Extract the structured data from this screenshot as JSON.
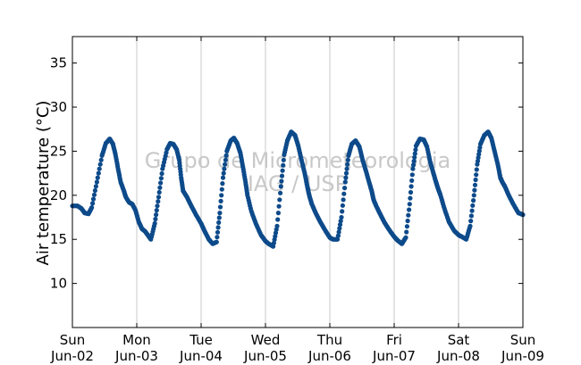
{
  "chart_data": {
    "type": "scatter",
    "title": "",
    "ylabel": "Air temperature (°C)",
    "xlabel": "",
    "ylim": [
      5,
      38
    ],
    "xlim_days": [
      0,
      7
    ],
    "yticks": [
      10,
      15,
      20,
      25,
      30,
      35
    ],
    "xticks": [
      {
        "day": 0,
        "weekday": "Sun",
        "date": "Jun-02"
      },
      {
        "day": 1,
        "weekday": "Mon",
        "date": "Jun-03"
      },
      {
        "day": 2,
        "weekday": "Tue",
        "date": "Jun-04"
      },
      {
        "day": 3,
        "weekday": "Wed",
        "date": "Jun-05"
      },
      {
        "day": 4,
        "weekday": "Thu",
        "date": "Jun-06"
      },
      {
        "day": 5,
        "weekday": "Fri",
        "date": "Jun-07"
      },
      {
        "day": 6,
        "weekday": "Sat",
        "date": "Jun-08"
      },
      {
        "day": 7,
        "weekday": "Sun",
        "date": "Jun-09"
      }
    ],
    "grid": "vertical",
    "marker_color": "#0d4a8a",
    "watermark": [
      "Grupo de Micrometeorologia",
      "IAG / USP"
    ],
    "series": [
      {
        "x": [
          0.0,
          0.08,
          0.14,
          0.19,
          0.25,
          0.3,
          0.38,
          0.46,
          0.52,
          0.58,
          0.63,
          0.67,
          0.71,
          0.75,
          0.8,
          0.83,
          0.88,
          0.93,
          0.98,
          1.03,
          1.08,
          1.13,
          1.18,
          1.22,
          1.28,
          1.34,
          1.4,
          1.47,
          1.52,
          1.57,
          1.62,
          1.66,
          1.69,
          1.72,
          1.78,
          1.84,
          1.92,
          2.0,
          2.05,
          2.12,
          2.18,
          2.24,
          2.29,
          2.34,
          2.4,
          2.46,
          2.51,
          2.56,
          2.61,
          2.65,
          2.69,
          2.72,
          2.78,
          2.85,
          2.93,
          3.0,
          3.05,
          3.12,
          3.18,
          3.24,
          3.29,
          3.34,
          3.4,
          3.46,
          3.51,
          3.56,
          3.61,
          3.65,
          3.68,
          3.72,
          3.78,
          3.85,
          3.93,
          4.0,
          4.05,
          4.12,
          4.18,
          4.24,
          4.29,
          4.34,
          4.4,
          4.46,
          4.51,
          4.56,
          4.61,
          4.65,
          4.68,
          4.72,
          4.78,
          4.85,
          4.93,
          5.0,
          5.05,
          5.12,
          5.18,
          5.24,
          5.29,
          5.34,
          5.4,
          5.46,
          5.51,
          5.56,
          5.61,
          5.65,
          5.68,
          5.72,
          5.78,
          5.85,
          5.93,
          6.0,
          6.05,
          6.12,
          6.18,
          6.24,
          6.29,
          6.34,
          6.4,
          6.46,
          6.51,
          6.56,
          6.61,
          6.65,
          6.68,
          6.72,
          6.78,
          6.85,
          6.93,
          7.0
        ],
        "y": [
          18.8,
          18.8,
          18.5,
          18.0,
          17.9,
          18.6,
          21.5,
          24.5,
          25.9,
          26.4,
          25.8,
          24.6,
          23.0,
          21.5,
          20.5,
          19.8,
          19.2,
          19.0,
          18.3,
          17.0,
          16.2,
          15.9,
          15.4,
          15.0,
          16.8,
          19.8,
          23.0,
          25.2,
          25.9,
          25.8,
          25.2,
          24.0,
          22.0,
          20.5,
          19.8,
          18.9,
          17.8,
          16.8,
          16.0,
          15.0,
          14.5,
          14.7,
          18.0,
          22.0,
          25.0,
          26.2,
          26.5,
          25.9,
          24.8,
          23.2,
          21.5,
          20.0,
          18.2,
          16.8,
          15.5,
          14.8,
          14.5,
          14.2,
          16.5,
          21.0,
          24.6,
          26.2,
          27.2,
          26.8,
          25.6,
          24.0,
          22.5,
          21.0,
          20.0,
          19.0,
          18.0,
          17.0,
          16.0,
          15.2,
          15.0,
          15.0,
          17.5,
          21.5,
          24.5,
          25.8,
          26.2,
          25.5,
          24.0,
          22.8,
          21.5,
          20.5,
          19.5,
          18.8,
          17.9,
          16.9,
          16.0,
          15.3,
          14.9,
          14.5,
          15.2,
          19.0,
          23.0,
          25.6,
          26.4,
          26.3,
          25.5,
          23.8,
          22.5,
          21.5,
          20.8,
          20.0,
          18.5,
          17.0,
          16.0,
          15.5,
          15.3,
          15.0,
          16.5,
          20.0,
          23.5,
          25.8,
          26.8,
          27.2,
          26.5,
          25.0,
          23.5,
          22.0,
          21.5,
          21.0,
          20.0,
          19.0,
          18.0,
          17.8
        ]
      }
    ]
  }
}
